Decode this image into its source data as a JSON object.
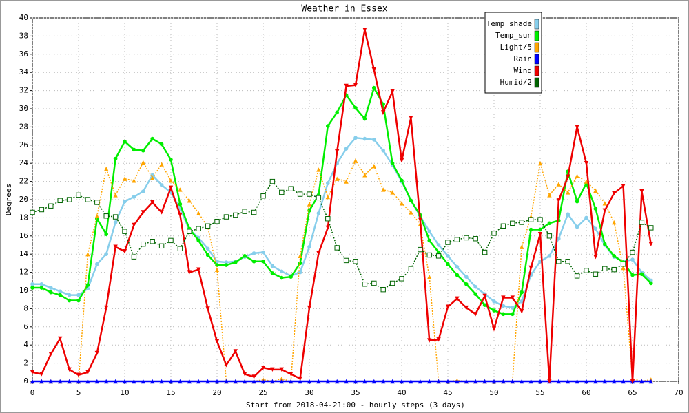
{
  "chart_data": {
    "type": "line",
    "title": "Weather in Essex",
    "x_label": "Start from 2018-04-21:00 - hourly steps (3 days)",
    "y_label": "Degrees",
    "x": [
      0,
      1,
      2,
      3,
      4,
      5,
      6,
      7,
      8,
      9,
      10,
      11,
      12,
      13,
      14,
      15,
      16,
      17,
      18,
      19,
      20,
      21,
      22,
      23,
      24,
      25,
      26,
      27,
      28,
      29,
      30,
      31,
      32,
      33,
      34,
      35,
      36,
      37,
      38,
      39,
      40,
      41,
      42,
      43,
      44,
      45,
      46,
      47,
      48,
      49,
      50,
      51,
      52,
      53,
      54,
      55,
      56,
      57,
      58,
      59,
      60,
      61,
      62,
      63,
      64,
      65,
      66,
      67
    ],
    "xlim": [
      0,
      70
    ],
    "xticks": [
      0,
      5,
      10,
      15,
      20,
      25,
      30,
      35,
      40,
      45,
      50,
      55,
      60,
      65,
      70
    ],
    "ylim": [
      0,
      40
    ],
    "yticks": [
      0,
      2,
      4,
      6,
      8,
      10,
      12,
      14,
      16,
      18,
      20,
      22,
      24,
      26,
      28,
      30,
      32,
      34,
      36,
      38,
      40
    ],
    "grid": true,
    "legend": "top-right",
    "series": [
      {
        "name": "Temp_shade",
        "color": "#87ceeb",
        "marker": "circle",
        "dash": "solid",
        "values": [
          10.7,
          10.7,
          10.3,
          9.9,
          9.5,
          9.5,
          10.2,
          12.9,
          14.0,
          17.5,
          19.8,
          20.3,
          20.9,
          22.7,
          21.6,
          20.8,
          19.0,
          16.7,
          15.8,
          14.6,
          13.2,
          13.1,
          13.2,
          13.7,
          14.1,
          14.2,
          12.7,
          12.1,
          11.6,
          12.0,
          14.8,
          18.5,
          21.8,
          24.0,
          25.6,
          26.8,
          26.7,
          26.6,
          25.4,
          23.8,
          22.0,
          19.9,
          18.2,
          16.5,
          15.0,
          13.8,
          12.6,
          11.5,
          10.4,
          9.6,
          8.8,
          8.3,
          8.1,
          8.8,
          11.7,
          13.2,
          13.8,
          15.7,
          18.4,
          17.0,
          18.0,
          16.8,
          15.0,
          13.7,
          13.2,
          13.4,
          12.0,
          11.1
        ]
      },
      {
        "name": "Temp_sun",
        "color": "#00ee00",
        "marker": "circle",
        "dash": "solid",
        "values": [
          10.3,
          10.3,
          9.8,
          9.5,
          8.9,
          8.9,
          10.6,
          17.9,
          16.2,
          24.5,
          26.4,
          25.5,
          25.4,
          26.7,
          26.1,
          24.4,
          19.5,
          16.8,
          15.5,
          13.9,
          12.8,
          12.8,
          13.1,
          13.8,
          13.2,
          13.2,
          11.9,
          11.4,
          11.5,
          13.0,
          18.8,
          20.5,
          28.1,
          29.6,
          31.5,
          30.1,
          28.9,
          32.3,
          30.5,
          24.0,
          22.1,
          19.9,
          18.3,
          15.5,
          14.2,
          12.9,
          11.7,
          10.7,
          9.6,
          8.4,
          7.8,
          7.4,
          7.4,
          9.8,
          16.7,
          16.7,
          17.4,
          17.7,
          23.1,
          19.8,
          21.8,
          19.0,
          15.1,
          13.8,
          13.1,
          11.7,
          11.8,
          10.8
        ]
      },
      {
        "name": "Light/5",
        "color": "#ffa500",
        "marker": "triangle-up",
        "dash": "dotted",
        "values": [
          0,
          0,
          0,
          0,
          0,
          0,
          14.0,
          18.2,
          23.4,
          20.5,
          22.3,
          22.1,
          24.1,
          22.4,
          23.9,
          22.1,
          21.1,
          19.9,
          18.5,
          17.0,
          12.3,
          0,
          0,
          0,
          0,
          0.2,
          0,
          0.3,
          0,
          13.8,
          19.5,
          23.3,
          20.3,
          22.3,
          22.0,
          24.3,
          22.7,
          23.7,
          21.1,
          20.8,
          19.6,
          18.6,
          17.3,
          11.5,
          0,
          0,
          0.1,
          0,
          0,
          0,
          0,
          0,
          0,
          14.8,
          18.1,
          24.0,
          20.5,
          21.7,
          20.8,
          22.6,
          22.0,
          21.0,
          19.6,
          17.5,
          12.5,
          0.3,
          0,
          0.2
        ]
      },
      {
        "name": "Rain",
        "color": "#0000ff",
        "marker": "triangle-up",
        "dash": "solid",
        "values": [
          0,
          0,
          0,
          0,
          0,
          0,
          0,
          0,
          0,
          0,
          0,
          0,
          0,
          0,
          0,
          0,
          0,
          0,
          0,
          0,
          0,
          0,
          0,
          0,
          0,
          0,
          0,
          0,
          0,
          0,
          0,
          0,
          0,
          0,
          0,
          0,
          0,
          0,
          0,
          0,
          0,
          0,
          0,
          0,
          0,
          0,
          0,
          0,
          0,
          0,
          0,
          0,
          0,
          0,
          0,
          0,
          0,
          0,
          0,
          0,
          0,
          0,
          0,
          0,
          0,
          0,
          0,
          0
        ]
      },
      {
        "name": "Wind",
        "color": "#ee0000",
        "marker": "triangle-down",
        "dash": "solid",
        "values": [
          1.0,
          0.8,
          3.0,
          4.7,
          1.3,
          0.7,
          1.0,
          3.1,
          8.1,
          14.8,
          14.3,
          17.2,
          18.6,
          19.7,
          18.6,
          21.3,
          18.3,
          12.0,
          12.3,
          8.0,
          4.4,
          1.8,
          3.3,
          0.8,
          0.5,
          1.5,
          1.3,
          1.3,
          0.8,
          0.3,
          8.1,
          14.1,
          16.9,
          25.3,
          32.5,
          32.6,
          38.7,
          34.3,
          29.6,
          31.9,
          24.3,
          29.0,
          17.8,
          4.5,
          4.6,
          8.2,
          9.1,
          8.1,
          7.4,
          9.4,
          5.8,
          9.2,
          9.2,
          7.7,
          12.5,
          16.2,
          0,
          19.9,
          22.5,
          28.0,
          24.0,
          13.7,
          18.8,
          20.7,
          21.5,
          0,
          20.9,
          15.1
        ]
      },
      {
        "name": "Humid/2",
        "color": "#006400",
        "marker": "square",
        "dash": "dotted",
        "values": [
          18.6,
          18.9,
          19.3,
          19.9,
          20.0,
          20.5,
          20.0,
          19.7,
          18.2,
          18.1,
          16.5,
          13.7,
          15.1,
          15.4,
          14.9,
          15.5,
          14.6,
          16.5,
          16.8,
          17.1,
          17.6,
          18.1,
          18.3,
          18.7,
          18.6,
          20.4,
          22.0,
          20.8,
          21.2,
          20.6,
          20.6,
          20.2,
          17.9,
          14.7,
          13.3,
          13.2,
          10.7,
          10.8,
          10.1,
          10.8,
          11.3,
          12.4,
          14.5,
          13.9,
          13.8,
          15.3,
          15.6,
          15.8,
          15.7,
          14.2,
          16.3,
          17.1,
          17.4,
          17.5,
          17.8,
          17.8,
          16.0,
          13.2,
          13.2,
          11.6,
          12.2,
          11.8,
          12.4,
          12.3,
          12.9,
          14.2,
          17.5,
          16.9
        ]
      }
    ]
  }
}
